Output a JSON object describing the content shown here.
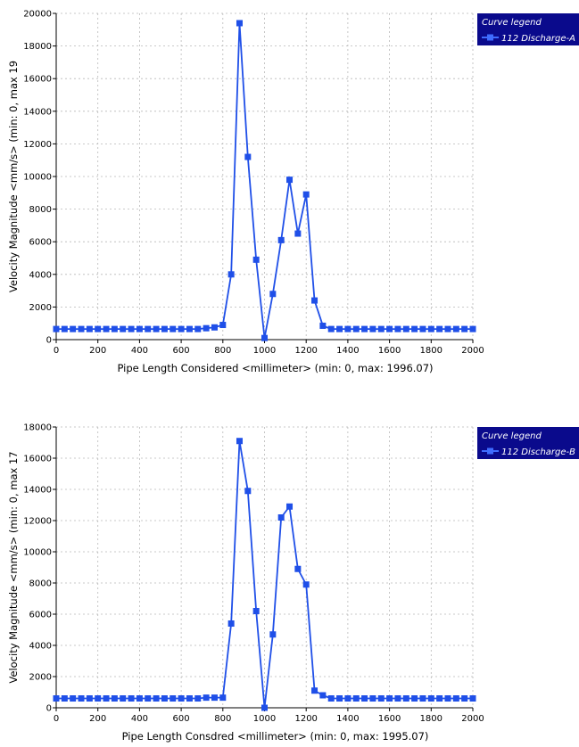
{
  "chart_data": [
    {
      "type": "line",
      "xlabel": "Pipe Length Considered <millimeter> (min: 0, max: 1996.07)",
      "ylabel": "Velocity Magnitude <mm/s> (min: 0, max 19",
      "xlim": [
        0,
        2000
      ],
      "ylim": [
        0,
        20000
      ],
      "xticks": [
        0,
        200,
        400,
        600,
        800,
        1000,
        1200,
        1400,
        1600,
        1800,
        2000
      ],
      "yticks": [
        0,
        2000,
        4000,
        6000,
        8000,
        10000,
        12000,
        14000,
        16000,
        18000,
        20000
      ],
      "grid": true,
      "legend": {
        "title": "Curve legend",
        "placement": "top-right"
      },
      "series": [
        {
          "name": "112 Discharge-A",
          "color": "#1f4fe8",
          "marker": "square",
          "x": [
            0,
            40,
            80,
            120,
            160,
            200,
            240,
            280,
            320,
            360,
            400,
            440,
            480,
            520,
            560,
            600,
            640,
            680,
            720,
            760,
            800,
            840,
            880,
            920,
            960,
            1000,
            1040,
            1080,
            1120,
            1160,
            1200,
            1240,
            1280,
            1320,
            1360,
            1400,
            1440,
            1480,
            1520,
            1560,
            1600,
            1640,
            1680,
            1720,
            1760,
            1800,
            1840,
            1880,
            1920,
            1960,
            2000
          ],
          "y": [
            650,
            650,
            650,
            650,
            650,
            650,
            650,
            650,
            650,
            650,
            650,
            650,
            650,
            650,
            650,
            650,
            650,
            650,
            700,
            750,
            900,
            4000,
            19400,
            11200,
            4900,
            100,
            2800,
            6100,
            9800,
            6500,
            8900,
            2400,
            850,
            650,
            650,
            650,
            650,
            650,
            650,
            650,
            650,
            650,
            650,
            650,
            650,
            650,
            650,
            650,
            650,
            650,
            650
          ]
        }
      ]
    },
    {
      "type": "line",
      "xlabel": "Pipe Length Consdred <millimeter> (min: 0, max: 1995.07)",
      "ylabel": "Velocity Magnitude <mm/s> (min: 0, max 17",
      "xlim": [
        0,
        2000
      ],
      "ylim": [
        0,
        18000
      ],
      "xticks": [
        0,
        200,
        400,
        600,
        800,
        1000,
        1200,
        1400,
        1600,
        1800,
        2000
      ],
      "yticks": [
        0,
        2000,
        4000,
        6000,
        8000,
        10000,
        12000,
        14000,
        16000,
        18000
      ],
      "grid": true,
      "legend": {
        "title": "Curve legend",
        "placement": "top-right"
      },
      "series": [
        {
          "name": "112 Discharge-B",
          "color": "#1f4fe8",
          "marker": "square",
          "x": [
            0,
            40,
            80,
            120,
            160,
            200,
            240,
            280,
            320,
            360,
            400,
            440,
            480,
            520,
            560,
            600,
            640,
            680,
            720,
            760,
            800,
            840,
            880,
            920,
            960,
            1000,
            1040,
            1080,
            1120,
            1160,
            1200,
            1240,
            1280,
            1320,
            1360,
            1400,
            1440,
            1480,
            1520,
            1560,
            1600,
            1640,
            1680,
            1720,
            1760,
            1800,
            1840,
            1880,
            1920,
            1960,
            2000
          ],
          "y": [
            600,
            600,
            600,
            600,
            600,
            600,
            600,
            600,
            600,
            600,
            600,
            600,
            600,
            600,
            600,
            600,
            600,
            600,
            650,
            650,
            650,
            5400,
            17100,
            13900,
            6200,
            0,
            4700,
            12200,
            12900,
            8900,
            7900,
            1100,
            800,
            600,
            600,
            600,
            600,
            600,
            600,
            600,
            600,
            600,
            600,
            600,
            600,
            600,
            600,
            600,
            600,
            600,
            600
          ]
        }
      ]
    }
  ]
}
